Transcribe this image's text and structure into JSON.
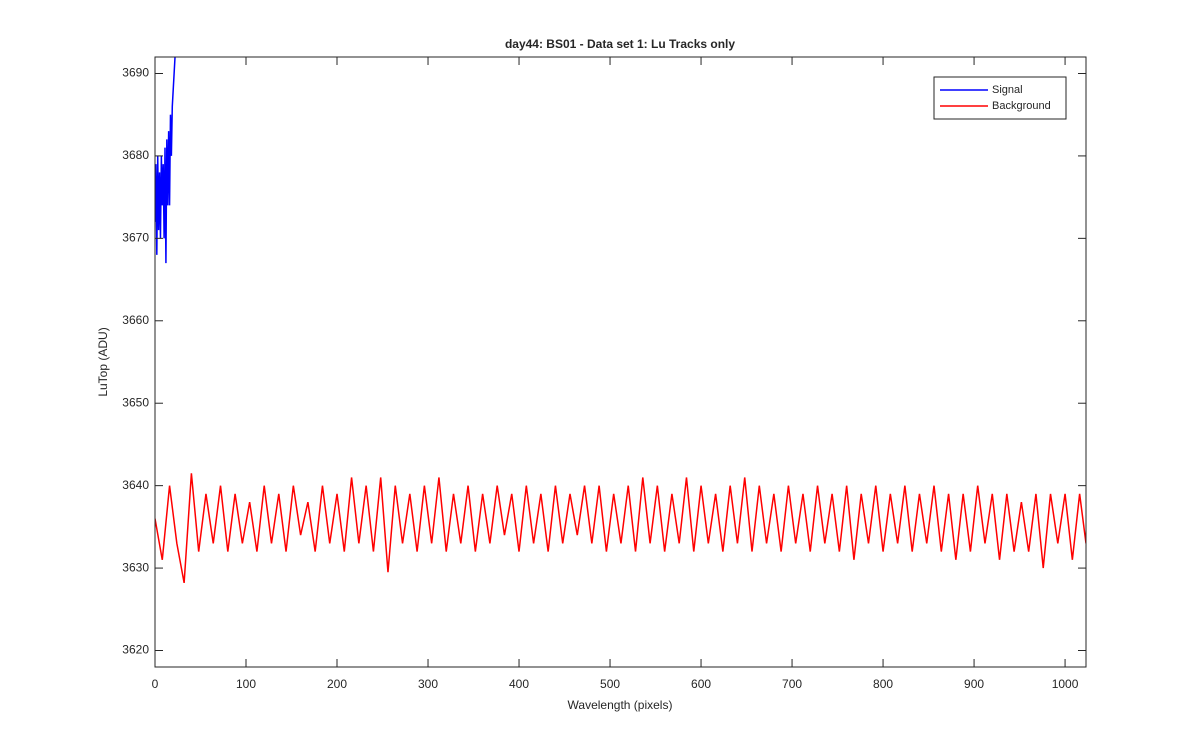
{
  "chart_data": {
    "type": "line",
    "title": "day44: BS01 - Data set 1: Lu Tracks only",
    "xlabel": "Wavelength (pixels)",
    "ylabel": "LuTop (ADU)",
    "xlim": [
      0,
      1023
    ],
    "ylim": [
      3618,
      3692
    ],
    "xticks": [
      0,
      100,
      200,
      300,
      400,
      500,
      600,
      700,
      800,
      900,
      1000
    ],
    "yticks": [
      3620,
      3630,
      3640,
      3650,
      3660,
      3670,
      3680,
      3690
    ],
    "grid": false,
    "legend": "upper right",
    "series": [
      {
        "name": "Signal",
        "color": "#0000ff",
        "x": [
          0,
          1,
          2,
          3,
          4,
          5,
          6,
          7,
          8,
          9,
          10,
          11,
          12,
          13,
          14,
          15,
          16,
          17,
          18,
          19,
          20,
          21,
          22
        ],
        "values": [
          3672,
          3679,
          3668,
          3680,
          3671,
          3678,
          3670,
          3680,
          3674,
          3679,
          3670,
          3681,
          3667,
          3682,
          3674,
          3683,
          3674,
          3685,
          3680,
          3686,
          3688,
          3690,
          3692
        ]
      },
      {
        "name": "Background",
        "color": "#ff0000",
        "x": [
          0,
          8,
          16,
          24,
          32,
          40,
          48,
          56,
          64,
          72,
          80,
          88,
          96,
          104,
          112,
          120,
          128,
          136,
          144,
          152,
          160,
          168,
          176,
          184,
          192,
          200,
          208,
          216,
          224,
          232,
          240,
          248,
          256,
          264,
          272,
          280,
          288,
          296,
          304,
          312,
          320,
          328,
          336,
          344,
          352,
          360,
          368,
          376,
          384,
          392,
          400,
          408,
          416,
          424,
          432,
          440,
          448,
          456,
          464,
          472,
          480,
          488,
          496,
          504,
          512,
          520,
          528,
          536,
          544,
          552,
          560,
          568,
          576,
          584,
          592,
          600,
          608,
          616,
          624,
          632,
          640,
          648,
          656,
          664,
          672,
          680,
          688,
          696,
          704,
          712,
          720,
          728,
          736,
          744,
          752,
          760,
          768,
          776,
          784,
          792,
          800,
          808,
          816,
          824,
          832,
          840,
          848,
          856,
          864,
          872,
          880,
          888,
          896,
          904,
          912,
          920,
          928,
          936,
          944,
          952,
          960,
          968,
          976,
          984,
          992,
          1000,
          1008,
          1016,
          1023
        ],
        "values": [
          3636,
          3631,
          3640,
          3633,
          3628.2,
          3641.5,
          3632,
          3639,
          3633,
          3640,
          3632,
          3639,
          3633,
          3638,
          3632,
          3640,
          3633,
          3639,
          3632,
          3640,
          3634,
          3638,
          3632,
          3640,
          3633,
          3639,
          3632,
          3641,
          3633,
          3640,
          3632,
          3641,
          3629.5,
          3640,
          3633,
          3639,
          3632,
          3640,
          3633,
          3641,
          3632,
          3639,
          3633,
          3640,
          3632,
          3639,
          3633,
          3640,
          3634,
          3639,
          3632,
          3640,
          3633,
          3639,
          3632,
          3640,
          3633,
          3639,
          3634,
          3640,
          3633,
          3640,
          3632,
          3639,
          3633,
          3640,
          3632,
          3641,
          3633,
          3640,
          3632,
          3639,
          3633,
          3641,
          3632,
          3640,
          3633,
          3639,
          3632,
          3640,
          3633,
          3641,
          3632,
          3640,
          3633,
          3639,
          3632,
          3640,
          3633,
          3639,
          3632,
          3640,
          3633,
          3639,
          3632,
          3640,
          3631,
          3639,
          3633,
          3640,
          3632,
          3639,
          3633,
          3640,
          3632,
          3639,
          3633,
          3640,
          3632,
          3639,
          3631,
          3639,
          3632,
          3640,
          3633,
          3639,
          3631,
          3639,
          3632,
          3638,
          3632,
          3639,
          3630,
          3639,
          3633,
          3639,
          3631,
          3639,
          3633
        ]
      }
    ]
  }
}
